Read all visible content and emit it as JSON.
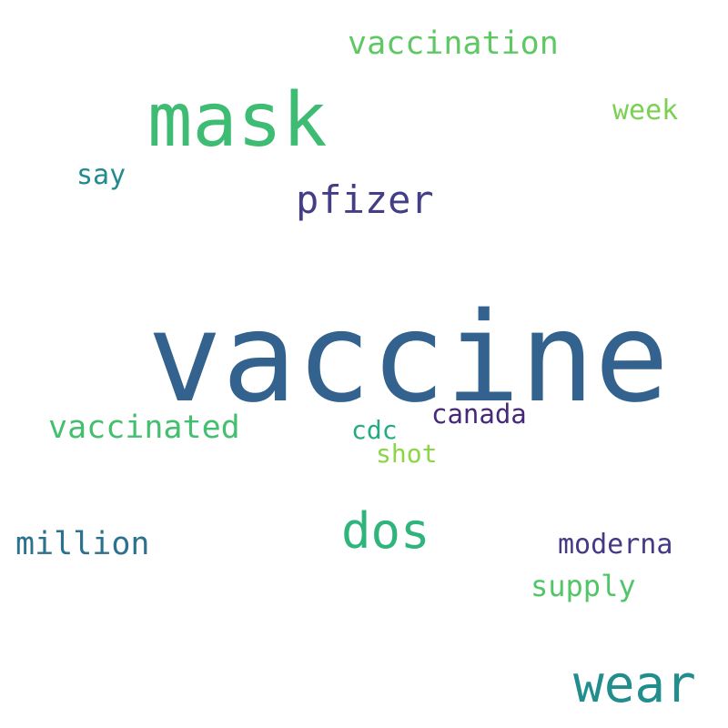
{
  "words": {
    "vaccine": {
      "text": "vaccine",
      "color": "#32628d"
    },
    "mask": {
      "text": "mask",
      "color": "#3fbc73"
    },
    "wear": {
      "text": "wear",
      "color": "#218e8d"
    },
    "dos": {
      "text": "dos",
      "color": "#2fb47c"
    },
    "pfizer": {
      "text": "pfizer",
      "color": "#433e85"
    },
    "vaccination": {
      "text": "vaccination",
      "color": "#5ec962"
    },
    "vaccinated": {
      "text": "vaccinated",
      "color": "#44bf70"
    },
    "million": {
      "text": "million",
      "color": "#2c728e"
    },
    "supply": {
      "text": "supply",
      "color": "#52c569"
    },
    "week": {
      "text": "week",
      "color": "#7ad151"
    },
    "say": {
      "text": "say",
      "color": "#228b8d"
    },
    "moderna": {
      "text": "moderna",
      "color": "#443983"
    },
    "canada": {
      "text": "canada",
      "color": "#482878"
    },
    "cdc": {
      "text": "cdc",
      "color": "#25ab82"
    },
    "shot": {
      "text": "shot",
      "color": "#8bd646"
    }
  }
}
